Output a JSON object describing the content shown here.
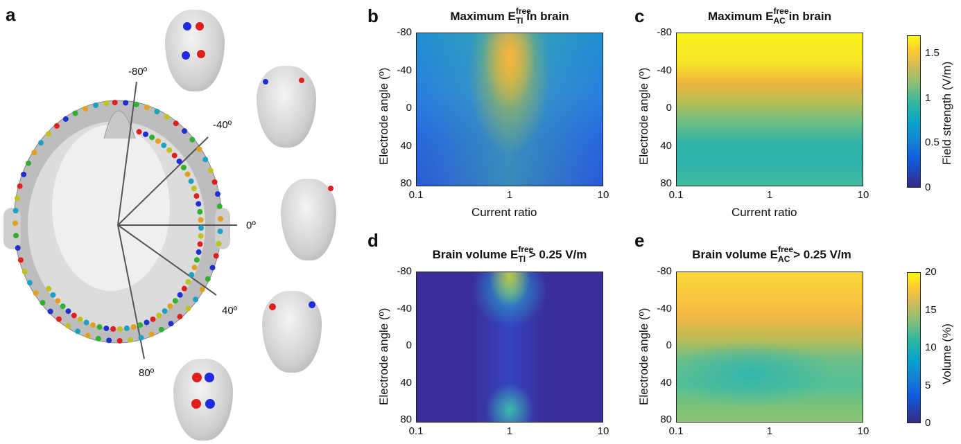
{
  "panels": {
    "a": {
      "letter": "a",
      "angles": [
        "-80º",
        "-40º",
        "0º",
        "40º",
        "80º"
      ]
    },
    "b": {
      "letter": "b",
      "title_pre": "Maximum E",
      "title_sup": "free",
      "title_sub": "TI",
      "title_post": " in brain"
    },
    "c": {
      "letter": "c",
      "title_pre": "Maximum E",
      "title_sup": "free",
      "title_sub": "AC",
      "title_post": " in brain"
    },
    "d": {
      "letter": "d",
      "title_pre": "Brain volume E",
      "title_sup": "free",
      "title_sub": "TI",
      "title_post": " > 0.25 V/m"
    },
    "e": {
      "letter": "e",
      "title_pre": "Brain volume E",
      "title_sup": "free",
      "title_sub": "AC",
      "title_post": " > 0.25 V/m"
    }
  },
  "axes": {
    "ylabel": "Electrode angle (º)",
    "xlabel": "Current ratio",
    "yticks": [
      "-80",
      "-40",
      "0",
      "40",
      "80"
    ],
    "xticks": [
      "0.1",
      "1",
      "10"
    ]
  },
  "colorbars": {
    "top": {
      "label": "Field strength (V/m)",
      "ticks": [
        "1.5",
        "1",
        "0.5",
        "0"
      ],
      "range": [
        0,
        1.7
      ]
    },
    "bottom": {
      "label": "Volume (%)",
      "ticks": [
        "20",
        "15",
        "10",
        "5",
        "0"
      ],
      "range": [
        0,
        20
      ]
    }
  },
  "chart_data": [
    {
      "type": "heatmap",
      "panel": "b",
      "x_scale": "log",
      "xlim": [
        0.1,
        10
      ],
      "ylim": [
        -80,
        80
      ],
      "colormap": "parula",
      "description_values": {
        "peak_value_near": {
          "x": 1,
          "y": -65
        }
      }
    },
    {
      "type": "heatmap",
      "panel": "c",
      "x_scale": "log",
      "xlim": [
        0.1,
        10
      ],
      "ylim": [
        -80,
        80
      ],
      "colormap": "parula"
    },
    {
      "type": "heatmap",
      "panel": "d",
      "x_scale": "log",
      "xlim": [
        0.1,
        10
      ],
      "ylim": [
        -80,
        80
      ],
      "colormap": "parula"
    },
    {
      "type": "heatmap",
      "panel": "e",
      "x_scale": "log",
      "xlim": [
        0.1,
        10
      ],
      "ylim": [
        -80,
        80
      ],
      "colormap": "parula"
    }
  ]
}
